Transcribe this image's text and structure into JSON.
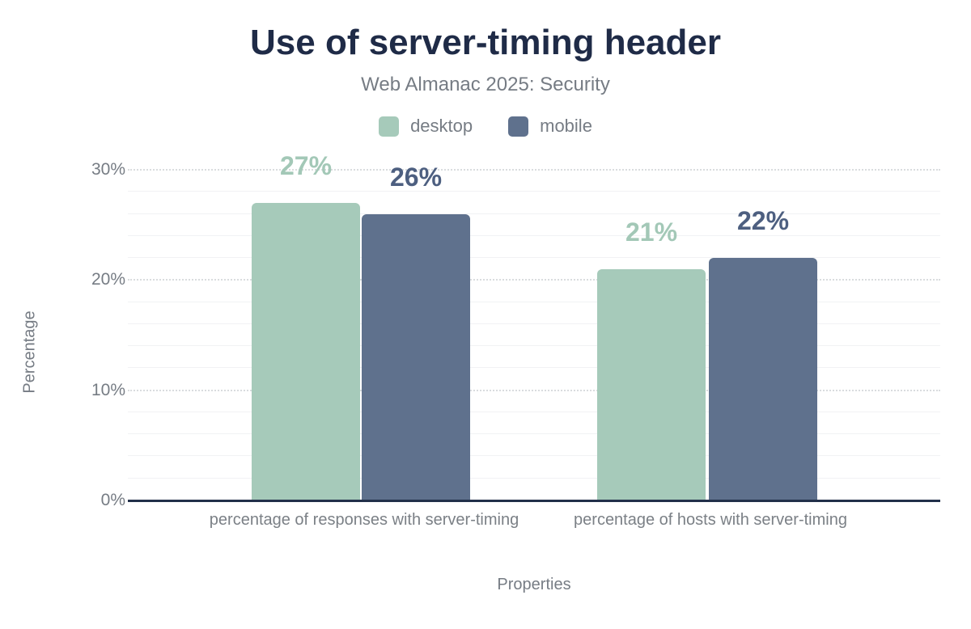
{
  "chart_data": {
    "type": "bar",
    "title": "Use of server-timing header",
    "subtitle": "Web Almanac 2025: Security",
    "xlabel": "Properties",
    "ylabel": "Percentage",
    "categories": [
      "percentage of responses with server-timing",
      "percentage of hosts with server-timing"
    ],
    "series": [
      {
        "name": "desktop",
        "color": "#a6caba",
        "label_color": "#a3c8b7",
        "values": [
          27,
          21
        ],
        "data_labels": [
          "27%",
          "21%"
        ]
      },
      {
        "name": "mobile",
        "color": "#5f718d",
        "label_color": "#4d5f80",
        "values": [
          26,
          22
        ],
        "data_labels": [
          "26%",
          "22%"
        ]
      }
    ],
    "y_axis": {
      "ticks": [
        "0%",
        "10%",
        "20%",
        "30%"
      ],
      "tick_values": [
        0,
        10,
        20,
        30
      ],
      "max": 30,
      "minor_step": 2,
      "grid": true
    },
    "legend_position": "top",
    "axis_color": "#22304a"
  }
}
